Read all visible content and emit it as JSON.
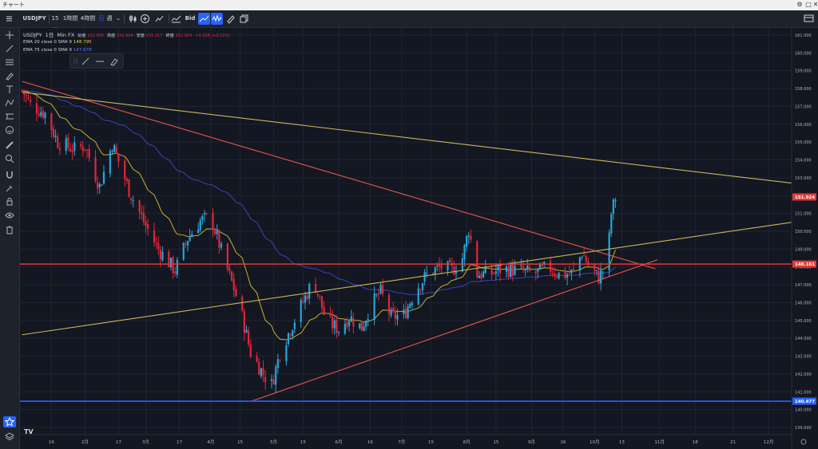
{
  "window": {
    "title": "チャート",
    "buttons": [
      "⚙",
      "□",
      "✕"
    ]
  },
  "toolbar": {
    "symbol": "USDJPY",
    "timeframes": [
      "15分",
      "1時間",
      "4時間"
    ],
    "period": "週",
    "price_type": "Bid"
  },
  "legend": {
    "line1": {
      "symbol": "USDJPY",
      "timeframe": "1日",
      "source": "Min FX",
      "open_label": "始値",
      "open": "151.906",
      "high_label": "高値",
      "high": "151.964",
      "low_label": "安値",
      "low": "151.217",
      "close_label": "終値",
      "close": "151.924",
      "change": "+0.328 (+0.22%)"
    },
    "ema20": {
      "label": "EMA 20 close 0 SMA 9",
      "value": "148.795"
    },
    "ema75": {
      "label": "EMA 75 close 0 SMA 9",
      "value": "147.678"
    }
  },
  "price_axis": {
    "ticks": [
      "161.000",
      "160.000",
      "159.000",
      "158.000",
      "157.000",
      "156.000",
      "155.000",
      "154.000",
      "153.000",
      "152.000",
      "151.000",
      "150.000",
      "149.000",
      "148.000",
      "147.000",
      "146.000",
      "145.000",
      "144.000",
      "143.000",
      "142.000",
      "141.000",
      "140.000",
      "139.000"
    ],
    "last_price": {
      "text": "151.924",
      "value": 151.924,
      "color": "#e53935"
    },
    "red_line": {
      "text": "148.161",
      "value": 148.161,
      "color": "#e53935"
    },
    "blue_line": {
      "text": "140.477",
      "value": 140.477,
      "color": "#2962ff"
    }
  },
  "time_axis": {
    "labels": [
      {
        "t": "16",
        "d": 15
      },
      {
        "t": "2月",
        "d": 31
      },
      {
        "t": "17",
        "d": 47
      },
      {
        "t": "3月",
        "d": 60
      },
      {
        "t": "17",
        "d": 76
      },
      {
        "t": "4月",
        "d": 91
      },
      {
        "t": "15",
        "d": 105
      },
      {
        "t": "5月",
        "d": 121
      },
      {
        "t": "15",
        "d": 135
      },
      {
        "t": "6月",
        "d": 152
      },
      {
        "t": "16",
        "d": 167
      },
      {
        "t": "7月",
        "d": 182
      },
      {
        "t": "15",
        "d": 196
      },
      {
        "t": "8月",
        "d": 213
      },
      {
        "t": "15",
        "d": 227
      },
      {
        "t": "9月",
        "d": 244
      },
      {
        "t": "16",
        "d": 259
      },
      {
        "t": "10月",
        "d": 274
      },
      {
        "t": "13",
        "d": 287
      },
      {
        "t": "11月",
        "d": 305
      },
      {
        "t": "18",
        "d": 322
      },
      {
        "t": "21",
        "d": 340
      },
      {
        "t": "12月",
        "d": 357
      }
    ]
  },
  "colors": {
    "up": "#26a6d9",
    "down": "#e0263a",
    "ema20": "#c9b12a",
    "ema75": "#3447b8",
    "trend_red": "#f0544f",
    "trend_yellow": "#c9b65a"
  },
  "icons": {
    "left": [
      "cursor-crosshair-icon",
      "trend-line-icon",
      "fib-icon",
      "brush-icon",
      "text-icon",
      "pattern-icon",
      "measure-icon",
      "emoji-icon",
      "ruler-icon",
      "zoom-icon",
      "magnet-icon",
      "lock-draw-icon",
      "lock-icon",
      "eye-icon",
      "trash-icon",
      "star-icon",
      "layers-icon"
    ]
  },
  "chart_data": {
    "type": "candlestick",
    "x_unit": "days from Jan 1 (2024)",
    "ylim": [
      138.6,
      161.4
    ],
    "xlim": [
      0,
      368
    ],
    "anchors": [
      [
        1,
        157.9
      ],
      [
        5,
        157.1
      ],
      [
        12,
        156.6
      ],
      [
        18,
        155.0
      ],
      [
        26,
        154.6
      ],
      [
        31,
        154.8
      ],
      [
        38,
        152.5
      ],
      [
        44,
        154.9
      ],
      [
        52,
        152.3
      ],
      [
        60,
        150.3
      ],
      [
        66,
        149.0
      ],
      [
        74,
        147.8
      ],
      [
        80,
        149.6
      ],
      [
        86,
        150.6
      ],
      [
        91,
        150.8
      ],
      [
        97,
        148.5
      ],
      [
        102,
        146.8
      ],
      [
        106,
        145.2
      ],
      [
        110,
        143.2
      ],
      [
        116,
        142.0
      ],
      [
        120,
        141.4
      ],
      [
        124,
        143.2
      ],
      [
        130,
        144.8
      ],
      [
        136,
        146.3
      ],
      [
        140,
        147.3
      ],
      [
        146,
        145.0
      ],
      [
        152,
        144.5
      ],
      [
        157,
        145.2
      ],
      [
        163,
        144.6
      ],
      [
        167,
        145.8
      ],
      [
        172,
        146.6
      ],
      [
        177,
        145.2
      ],
      [
        183,
        145.3
      ],
      [
        189,
        146.8
      ],
      [
        195,
        147.7
      ],
      [
        201,
        148.0
      ],
      [
        206,
        147.8
      ],
      [
        211,
        148.5
      ],
      [
        214,
        150.1
      ],
      [
        218,
        147.6
      ],
      [
        224,
        147.6
      ],
      [
        230,
        147.9
      ],
      [
        238,
        147.8
      ],
      [
        245,
        147.6
      ],
      [
        252,
        148.0
      ],
      [
        258,
        147.5
      ],
      [
        264,
        147.7
      ],
      [
        268,
        148.8
      ],
      [
        272,
        147.9
      ],
      [
        276,
        147.4
      ],
      [
        280,
        148.2
      ],
      [
        282,
        151.0
      ],
      [
        284,
        151.9
      ]
    ],
    "annotations": [
      {
        "kind": "red_trendline_down",
        "from": [
          1,
          158.4
        ],
        "to": [
          303,
          147.9
        ]
      },
      {
        "kind": "red_support_up",
        "from": [
          111,
          140.5
        ],
        "to": [
          304,
          148.4
        ]
      },
      {
        "kind": "yellow_long_down",
        "from": [
          1,
          157.8
        ],
        "to": [
          368,
          152.7
        ]
      },
      {
        "kind": "yellow_up",
        "from": [
          1,
          144.2
        ],
        "to": [
          368,
          150.5
        ]
      }
    ]
  }
}
